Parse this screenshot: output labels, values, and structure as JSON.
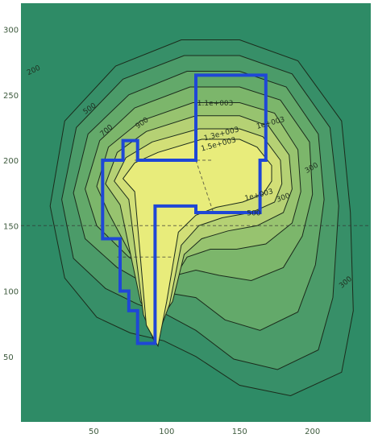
{
  "chart_data": {
    "type": "contour",
    "title": "",
    "xlabel": "",
    "ylabel": "",
    "xlim": [
      0,
      240
    ],
    "ylim": [
      0,
      320
    ],
    "x_ticks": [
      50,
      100,
      150,
      200
    ],
    "y_ticks": [
      50,
      100,
      150,
      200,
      250,
      300
    ],
    "top_axis_tick_labels_visible": false,
    "grid": false,
    "legend": "none",
    "colors": {
      "outer_fill": "#2e8b66",
      "mid_fill": "#79b36a",
      "inner_fill": "#e6ec78",
      "contour_line": "#1b2b1b",
      "dashed_line": "#333333",
      "outline": "#1f47d6"
    },
    "contour_rings": [
      {
        "level": "outer-1",
        "fill": "#378f68",
        "points": [
          [
            20,
            165
          ],
          [
            30,
            230
          ],
          [
            65,
            272
          ],
          [
            110,
            292
          ],
          [
            150,
            292
          ],
          [
            190,
            276
          ],
          [
            220,
            230
          ],
          [
            226,
            160
          ],
          [
            228,
            85
          ],
          [
            220,
            38
          ],
          [
            185,
            20
          ],
          [
            150,
            28
          ],
          [
            120,
            50
          ],
          [
            98,
            62
          ],
          [
            75,
            68
          ],
          [
            52,
            80
          ],
          [
            30,
            110
          ]
        ]
      },
      {
        "level": "outer-2",
        "fill": "#4b9b69",
        "points": [
          [
            28,
            170
          ],
          [
            38,
            225
          ],
          [
            70,
            262
          ],
          [
            112,
            280
          ],
          [
            150,
            280
          ],
          [
            186,
            266
          ],
          [
            212,
            225
          ],
          [
            218,
            165
          ],
          [
            214,
            95
          ],
          [
            204,
            55
          ],
          [
            176,
            40
          ],
          [
            146,
            48
          ],
          [
            120,
            70
          ],
          [
            100,
            82
          ],
          [
            80,
            90
          ],
          [
            58,
            102
          ],
          [
            36,
            125
          ]
        ]
      },
      {
        "level": "mid-1",
        "fill": "#63a96a",
        "points": [
          [
            36,
            175
          ],
          [
            46,
            220
          ],
          [
            74,
            250
          ],
          [
            114,
            268
          ],
          [
            150,
            268
          ],
          [
            182,
            256
          ],
          [
            204,
            220
          ],
          [
            208,
            170
          ],
          [
            202,
            120
          ],
          [
            190,
            84
          ],
          [
            164,
            70
          ],
          [
            140,
            78
          ],
          [
            120,
            95
          ],
          [
            104,
            98
          ],
          [
            88,
            104
          ],
          [
            66,
            118
          ],
          [
            44,
            140
          ]
        ]
      },
      {
        "level": "mid-2",
        "fill": "#7cb66b",
        "points": [
          [
            44,
            178
          ],
          [
            54,
            215
          ],
          [
            78,
            240
          ],
          [
            116,
            256
          ],
          [
            150,
            256
          ],
          [
            178,
            246
          ],
          [
            198,
            214
          ],
          [
            200,
            174
          ],
          [
            193,
            142
          ],
          [
            180,
            118
          ],
          [
            158,
            108
          ],
          [
            136,
            112
          ],
          [
            120,
            116
          ],
          [
            106,
            112
          ],
          [
            92,
            114
          ],
          [
            74,
            126
          ],
          [
            52,
            150
          ]
        ]
      },
      {
        "level": "mid-3",
        "fill": "#97c36f",
        "points": [
          [
            52,
            180
          ],
          [
            60,
            210
          ],
          [
            82,
            230
          ],
          [
            118,
            244
          ],
          [
            150,
            244
          ],
          [
            174,
            236
          ],
          [
            190,
            208
          ],
          [
            192,
            176
          ],
          [
            186,
            152
          ],
          [
            168,
            136
          ],
          [
            148,
            132
          ],
          [
            130,
            132
          ],
          [
            114,
            126
          ],
          [
            104,
            108
          ],
          [
            92,
            100
          ],
          [
            80,
            118
          ],
          [
            60,
            160
          ]
        ]
      },
      {
        "level": "inner-1",
        "fill": "#b5d174",
        "points": [
          [
            58,
            182
          ],
          [
            66,
            206
          ],
          [
            86,
            222
          ],
          [
            120,
            234
          ],
          [
            150,
            234
          ],
          [
            170,
            226
          ],
          [
            184,
            204
          ],
          [
            186,
            178
          ],
          [
            180,
            160
          ],
          [
            162,
            150
          ],
          [
            142,
            146
          ],
          [
            124,
            140
          ],
          [
            112,
            128
          ],
          [
            104,
            92
          ],
          [
            92,
            72
          ],
          [
            82,
            92
          ],
          [
            68,
            166
          ]
        ]
      },
      {
        "level": "inner-2",
        "fill": "#d2df77",
        "points": [
          [
            64,
            184
          ],
          [
            72,
            202
          ],
          [
            90,
            214
          ],
          [
            122,
            224
          ],
          [
            150,
            224
          ],
          [
            166,
            218
          ],
          [
            178,
            200
          ],
          [
            179,
            182
          ],
          [
            174,
            168
          ],
          [
            158,
            160
          ],
          [
            138,
            156
          ],
          [
            122,
            150
          ],
          [
            110,
            135
          ],
          [
            102,
            90
          ],
          [
            92,
            60
          ],
          [
            84,
            82
          ],
          [
            74,
            170
          ]
        ]
      },
      {
        "level": "inner-3",
        "fill": "#e8ec7b",
        "points": [
          [
            70,
            186
          ],
          [
            78,
            198
          ],
          [
            94,
            206
          ],
          [
            124,
            216
          ],
          [
            150,
            216
          ],
          [
            162,
            210
          ],
          [
            172,
            196
          ],
          [
            172,
            184
          ],
          [
            166,
            174
          ],
          [
            152,
            168
          ],
          [
            134,
            164
          ],
          [
            120,
            158
          ],
          [
            108,
            145
          ],
          [
            100,
            92
          ],
          [
            94,
            58
          ],
          [
            86,
            74
          ],
          [
            78,
            176
          ]
        ]
      }
    ],
    "dashed_segments": [
      [
        [
          0,
          150
        ],
        [
          240,
          150
        ]
      ],
      [
        [
          78,
          200
        ],
        [
          132,
          200
        ]
      ],
      [
        [
          120,
          200
        ],
        [
          132,
          160
        ]
      ],
      [
        [
          66,
          126
        ],
        [
          104,
          126
        ]
      ]
    ],
    "building_outline": [
      [
        120,
        265
      ],
      [
        168,
        265
      ],
      [
        168,
        200
      ],
      [
        164,
        200
      ],
      [
        164,
        160
      ],
      [
        120,
        160
      ],
      [
        120,
        165
      ],
      [
        92,
        165
      ],
      [
        92,
        60
      ],
      [
        80,
        60
      ],
      [
        80,
        85
      ],
      [
        74,
        85
      ],
      [
        74,
        100
      ],
      [
        68,
        100
      ],
      [
        68,
        140
      ],
      [
        56,
        140
      ],
      [
        56,
        200
      ],
      [
        70,
        200
      ],
      [
        70,
        215
      ],
      [
        80,
        215
      ],
      [
        80,
        200
      ],
      [
        120,
        200
      ]
    ],
    "contour_labels": [
      {
        "text": "200",
        "x": 5,
        "y": 265,
        "rotate": -25
      },
      {
        "text": "500",
        "x": 44,
        "y": 235,
        "rotate": -35
      },
      {
        "text": "700",
        "x": 56,
        "y": 218,
        "rotate": -40
      },
      {
        "text": "900",
        "x": 80,
        "y": 224,
        "rotate": -35
      },
      {
        "text": "1.1e+003",
        "x": 121,
        "y": 242,
        "rotate": 0
      },
      {
        "text": "1.3e+003",
        "x": 126,
        "y": 215,
        "rotate": -15
      },
      {
        "text": "1.5e+003",
        "x": 124,
        "y": 207,
        "rotate": -15
      },
      {
        "text": "1e+003",
        "x": 162,
        "y": 224,
        "rotate": -15
      },
      {
        "text": "1e+003",
        "x": 154,
        "y": 169,
        "rotate": -15
      },
      {
        "text": "500",
        "x": 155,
        "y": 158,
        "rotate": 0
      },
      {
        "text": "300",
        "x": 176,
        "y": 168,
        "rotate": -20
      },
      {
        "text": "300",
        "x": 196,
        "y": 190,
        "rotate": -30
      },
      {
        "text": "300",
        "x": 220,
        "y": 102,
        "rotate": -40
      }
    ]
  }
}
